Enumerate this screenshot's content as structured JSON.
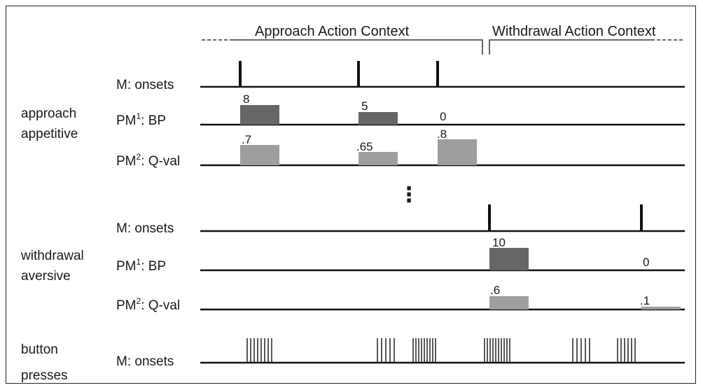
{
  "contexts": {
    "approach_label": "Approach Action Context",
    "withdrawal_label": "Withdrawal Action Context"
  },
  "groups": {
    "approach": {
      "line1": "approach",
      "line2": "appetitive"
    },
    "withdrawal": {
      "line1": "withdrawal",
      "line2": "aversive"
    },
    "buttons": {
      "line1": "button",
      "line2": "presses"
    }
  },
  "row_labels": {
    "m_onsets": "M: onsets",
    "pm1_prefix": "PM",
    "pm1_sup": "1",
    "pm1_suffix": ": BP",
    "pm2_prefix": "PM",
    "pm2_sup": "2",
    "pm2_suffix": ": Q-val"
  },
  "ellipsis": "⋮",
  "approach_section": {
    "bp_values": [
      "8",
      "5",
      "0"
    ],
    "qval_values": [
      ".7",
      ".65",
      ".8"
    ],
    "bp_levels": [
      8,
      5,
      0
    ],
    "qval_levels": [
      0.7,
      0.65,
      0.8
    ]
  },
  "withdrawal_section": {
    "bp_values": [
      "10",
      "0"
    ],
    "qval_values": [
      ".6",
      ".1"
    ],
    "bp_levels": [
      10,
      0
    ],
    "qval_levels": [
      0.6,
      0.1
    ]
  },
  "colors": {
    "bp_bar": "#666666",
    "qval_bar": "#9e9e9e",
    "line": "#111111"
  }
}
